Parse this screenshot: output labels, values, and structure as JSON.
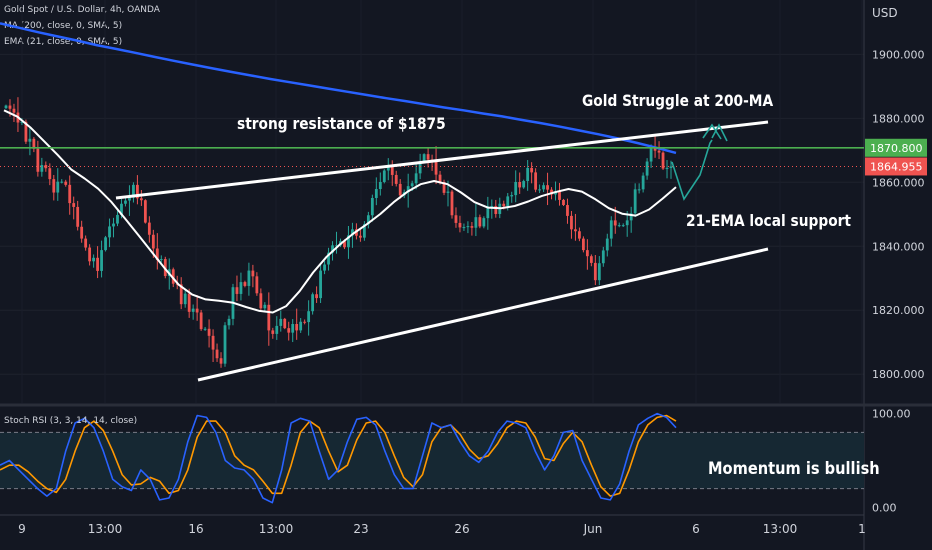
{
  "header": {
    "symbol_line": "Gold Spot / U.S. Dollar, 4h, OANDA",
    "ma_line": "MA (200, close, 0, SMA, 5)",
    "ema_line": "EMA (21, close, 0, SMA, 5)",
    "currency": "USD"
  },
  "annotations": {
    "title": "Gold Struggle at 200-MA",
    "resistance": "strong resistance of $1875",
    "support": "21-EMA local support",
    "momentum": "Momentum is bullish"
  },
  "stoch_label": "Stoch RSI (3, 3, 14, 14, close)",
  "colors": {
    "background": "#131722",
    "up": "#26a69a",
    "down": "#ef5350",
    "ma200": "#2962ff",
    "ema21": "#ffffff",
    "resistance_line": "#4caf50",
    "k_line": "#2962ff",
    "d_line": "#ff9800"
  },
  "chart_data": [
    {
      "type": "candlestick",
      "title": "Gold Spot / U.S. Dollar, 4h, OANDA",
      "ylabel": "USD",
      "x_tick_labels": [
        "9",
        "13:00",
        "16",
        "13:00",
        "23",
        "26",
        "Jun",
        "6",
        "13:00",
        "1"
      ],
      "y_ticks": [
        1800,
        1820,
        1840,
        1860,
        1880,
        1900
      ],
      "y_tick_labels": [
        "1800.000",
        "1820.000",
        "1840.000",
        "1860.000",
        "1880.000",
        "1900.000"
      ],
      "ylim": [
        1791,
        1917
      ],
      "price_labels": [
        {
          "value": 1870.8,
          "label": "1870.800",
          "color": "#4caf50"
        },
        {
          "value": 1864.955,
          "label": "1864.955",
          "color": "#ef5350"
        }
      ],
      "close": [
        1884.0,
        1883.0,
        1881.8,
        1878.7,
        1878.9,
        1872.7,
        1873.6,
        1870.5,
        1863.3,
        1865.4,
        1864.4,
        1861.0,
        1856.8,
        1860.2,
        1860.2,
        1859.2,
        1853.5,
        1852.3,
        1846.1,
        1842.4,
        1839.6,
        1835.3,
        1836.4,
        1832.3,
        1838.8,
        1842.8,
        1846.2,
        1847.1,
        1849.8,
        1853.3,
        1854.3,
        1855.2,
        1859.2,
        1855.0,
        1854.4,
        1847.4,
        1843.6,
        1839.3,
        1835.7,
        1836.0,
        1830.7,
        1832.8,
        1828.3,
        1828.1,
        1821.9,
        1825.2,
        1819.5,
        1820.5,
        1819.3,
        1814.1,
        1814.2,
        1812.0,
        1807.7,
        1805.0,
        1803.3,
        1815.3,
        1817.3,
        1827.2,
        1825.1,
        1828.8,
        1827.6,
        1832.4,
        1830.6,
        1825.3,
        1820.6,
        1821.7,
        1813.7,
        1812.6,
        1815.1,
        1817.3,
        1814.4,
        1813.0,
        1815.7,
        1813.7,
        1816.4,
        1816.3,
        1819.7,
        1825.0,
        1823.8,
        1832.4,
        1834.3,
        1838.0,
        1840.3,
        1840.3,
        1841.6,
        1839.7,
        1843.4,
        1845.3,
        1843.3,
        1842.7,
        1846.9,
        1849.7,
        1855.1,
        1857.9,
        1860.1,
        1863.7,
        1865.1,
        1862.3,
        1859.5,
        1855.9,
        1856.9,
        1858.8,
        1859.7,
        1862.8,
        1866.3,
        1868.8,
        1867.1,
        1866.5,
        1862.4,
        1860.1,
        1856.7,
        1857.1,
        1849.7,
        1847.3,
        1845.9,
        1846.0,
        1846.3,
        1845.8,
        1849.1,
        1846.2,
        1848.8,
        1852.5,
        1852.6,
        1850.1,
        1853.3,
        1852.5,
        1855.6,
        1856.0,
        1860.1,
        1858.4,
        1860.4,
        1864.5,
        1863.1,
        1857.7,
        1857.8,
        1859.1,
        1857.7,
        1856.2,
        1857.2,
        1854.5,
        1852.9,
        1849.5,
        1845.3,
        1844.7,
        1842.4,
        1838.8,
        1836.9,
        1834.8,
        1829.4,
        1834.7,
        1838.7,
        1842.4,
        1848.1,
        1846.5,
        1846.6,
        1846.6,
        1848.1,
        1850.3,
        1857.8,
        1857.8,
        1862.1,
        1866.5,
        1870.8,
        1869.9,
        1869.3,
        1864.3,
        1864.5,
        1864.955
      ],
      "series": [
        {
          "name": "MA (200, close, 0, SMA, 5)",
          "values": [
            1909.7,
            1908.3,
            1906.9,
            1905.6,
            1904.3,
            1902.9,
            1901.7,
            1900.5,
            1899.2,
            1898.0,
            1896.8,
            1895.6,
            1894.5,
            1893.4,
            1892.3,
            1891.3,
            1890.3,
            1889.3,
            1888.3,
            1887.3,
            1886.3,
            1885.4,
            1884.4,
            1883.4,
            1882.5,
            1881.5,
            1880.6,
            1879.5,
            1878.5,
            1877.4,
            1876.2,
            1875.0,
            1873.7,
            1872.3,
            1870.8,
            1869.2
          ]
        },
        {
          "name": "EMA (21, close, 0, SMA, 5)",
          "values": [
            1882.5,
            1880.5,
            1877.0,
            1872.8,
            1868.5,
            1864.0,
            1861.2,
            1858.0,
            1853.8,
            1848.7,
            1843.5,
            1838.2,
            1832.9,
            1828.0,
            1824.9,
            1823.4,
            1823.0,
            1822.4,
            1821.0,
            1819.8,
            1819.3,
            1821.3,
            1826.0,
            1831.8,
            1836.7,
            1840.6,
            1844.0,
            1846.9,
            1850.1,
            1853.8,
            1857.0,
            1859.4,
            1860.4,
            1859.4,
            1856.8,
            1853.8,
            1852.1,
            1851.9,
            1852.6,
            1854.0,
            1855.7,
            1856.9,
            1857.9,
            1857.1,
            1854.7,
            1851.9,
            1850.2,
            1849.6,
            1851.5,
            1854.9,
            1858.5
          ]
        }
      ]
    },
    {
      "type": "line",
      "title": "Stoch RSI (3, 3, 14, 14, close)",
      "y_ticks": [
        0,
        100
      ],
      "y_tick_labels": [
        "0.00",
        "100.00"
      ],
      "ylim": [
        -6,
        106
      ],
      "band": [
        20,
        80
      ],
      "series": [
        {
          "name": "K",
          "values": [
            45,
            50,
            40,
            30,
            20,
            12,
            20,
            60,
            90,
            95,
            85,
            60,
            30,
            22,
            18,
            40,
            30,
            8,
            10,
            30,
            70,
            98,
            96,
            80,
            50,
            42,
            40,
            30,
            10,
            5,
            40,
            90,
            95,
            92,
            60,
            30,
            40,
            70,
            94,
            96,
            88,
            60,
            35,
            20,
            20,
            55,
            90,
            85,
            88,
            70,
            55,
            48,
            60,
            80,
            92,
            90,
            85,
            60,
            40,
            55,
            80,
            82,
            50,
            30,
            10,
            8,
            25,
            60,
            88,
            95,
            100,
            96,
            85
          ]
        },
        {
          "name": "D",
          "values": [
            40,
            45,
            45,
            38,
            28,
            20,
            16,
            30,
            60,
            85,
            92,
            82,
            60,
            35,
            24,
            25,
            32,
            28,
            15,
            18,
            40,
            75,
            92,
            92,
            80,
            55,
            45,
            40,
            28,
            15,
            15,
            45,
            80,
            92,
            85,
            60,
            38,
            45,
            72,
            90,
            92,
            80,
            55,
            32,
            22,
            35,
            70,
            85,
            88,
            78,
            62,
            52,
            55,
            68,
            85,
            92,
            90,
            75,
            52,
            50,
            68,
            80,
            70,
            45,
            22,
            12,
            15,
            40,
            70,
            88,
            96,
            98,
            92
          ]
        }
      ]
    }
  ]
}
